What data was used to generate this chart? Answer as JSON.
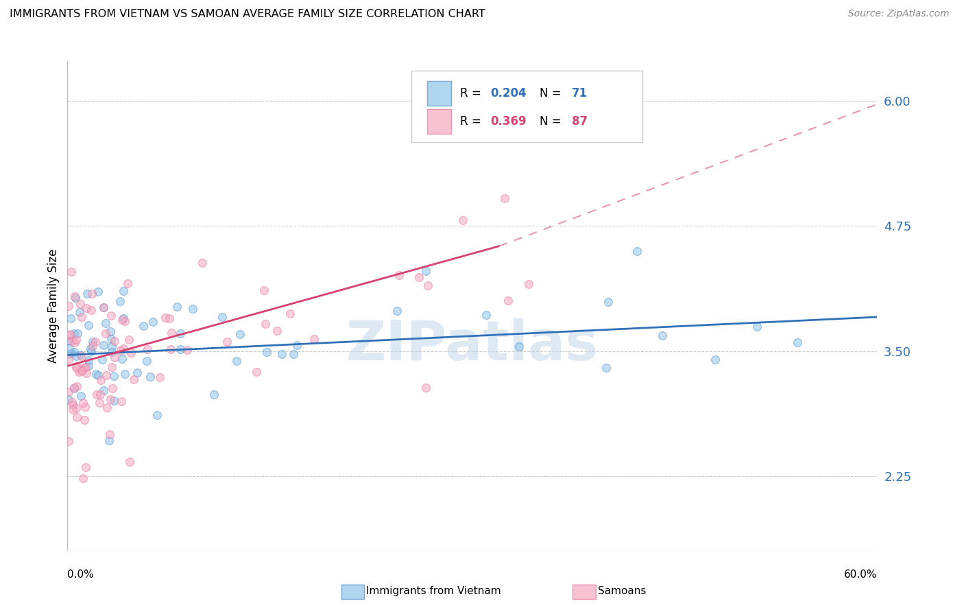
{
  "title": "IMMIGRANTS FROM VIETNAM VS SAMOAN AVERAGE FAMILY SIZE CORRELATION CHART",
  "source": "Source: ZipAtlas.com",
  "ylabel": "Average Family Size",
  "yticks": [
    2.25,
    3.5,
    4.75,
    6.0
  ],
  "xlim": [
    0.0,
    0.6
  ],
  "ylim": [
    1.5,
    6.4
  ],
  "watermark": "ZIPatlas",
  "viet_color": "#90c4e8",
  "samoan_color": "#f4a8be",
  "viet_line_color": "#3070b8",
  "samoan_line_color": "#d84070",
  "viet_marker_alpha": 0.55,
  "samoan_marker_alpha": 0.55,
  "marker_size": 72,
  "viet_edge_color": "#5090c8",
  "samoan_edge_color": "#e870a0",
  "legend_r1_val": "0.204",
  "legend_n1_val": "71",
  "legend_r2_val": "0.369",
  "legend_n2_val": "87",
  "legend_num_color_blue": "#3070b8",
  "legend_num_color_pink": "#d84070",
  "grid_color": "#cccccc",
  "border_color": "#bbbbbb"
}
